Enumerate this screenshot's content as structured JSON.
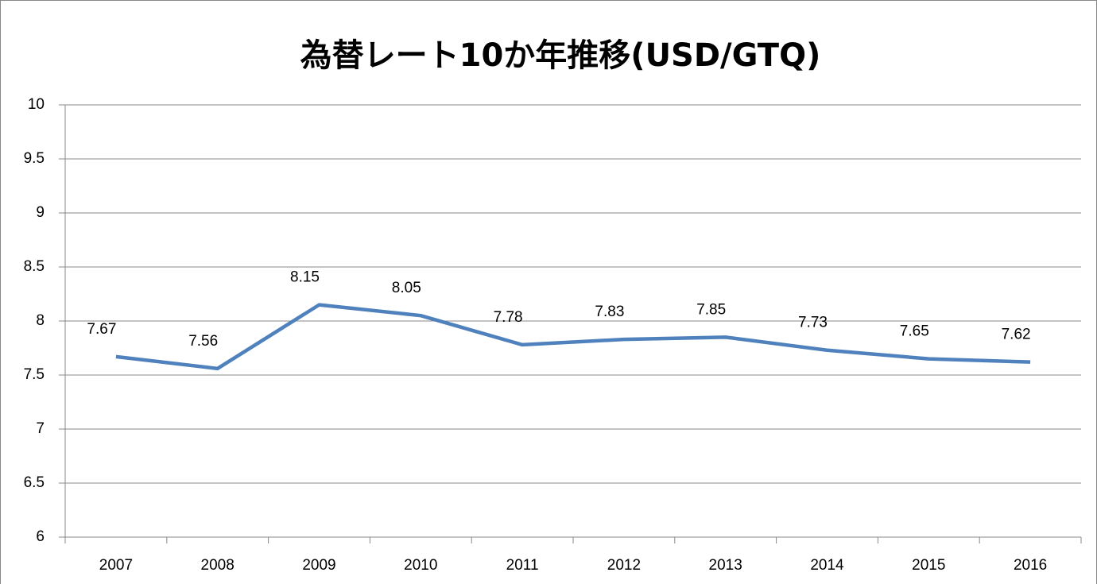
{
  "chart_data": {
    "type": "line",
    "title": "為替レート10か年推移(USD/GTQ)",
    "categories": [
      "2007",
      "2008",
      "2009",
      "2010",
      "2011",
      "2012",
      "2013",
      "2014",
      "2015",
      "2016"
    ],
    "series": [
      {
        "name": "USD/GTQ",
        "color": "#4f81bd",
        "values": [
          7.67,
          7.56,
          8.15,
          8.05,
          7.78,
          7.83,
          7.85,
          7.73,
          7.65,
          7.62
        ]
      }
    ],
    "ylim": [
      6,
      10
    ],
    "yticks": [
      6,
      6.5,
      7,
      7.5,
      8,
      8.5,
      9,
      9.5,
      10
    ],
    "grid": true,
    "data_labels": true
  }
}
